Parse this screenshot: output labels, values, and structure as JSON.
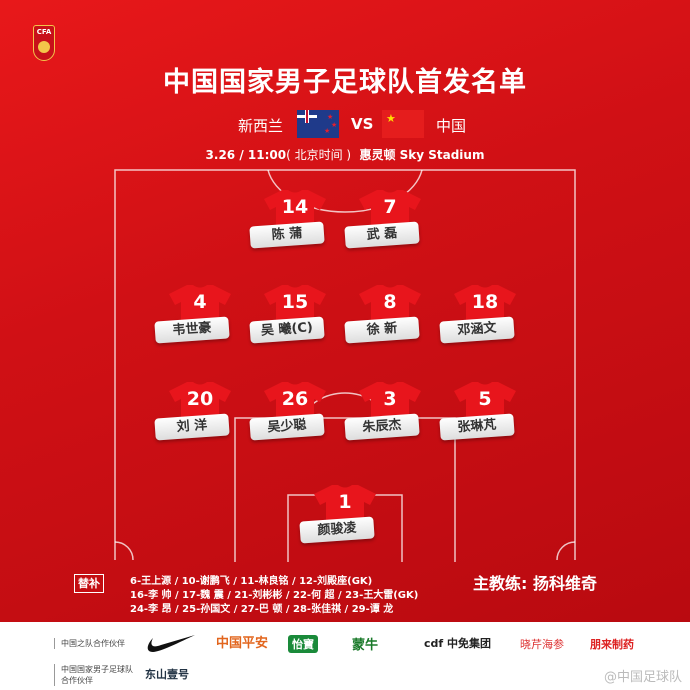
{
  "logo": {
    "text": "CFA"
  },
  "title": "中国国家男子足球队首发名单",
  "match": {
    "home": "新西兰",
    "vs": "VS",
    "away": "中国",
    "date_time": "3.26 / 11:00",
    "timezone": "( 北京时间 )",
    "venue": "惠灵顿 Sky Stadium"
  },
  "colors": {
    "primary": "#d01015",
    "jersey": "#e8151c",
    "gold": "#f3c54a"
  },
  "players": [
    {
      "number": "14",
      "name": "陈 蒲"
    },
    {
      "number": "7",
      "name": "武 磊"
    },
    {
      "number": "4",
      "name": "韦世豪"
    },
    {
      "number": "15",
      "name": "吴 曦(C)"
    },
    {
      "number": "8",
      "name": "徐 新"
    },
    {
      "number": "18",
      "name": "邓涵文"
    },
    {
      "number": "20",
      "name": "刘 洋"
    },
    {
      "number": "26",
      "name": "吴少聪"
    },
    {
      "number": "3",
      "name": "朱辰杰"
    },
    {
      "number": "5",
      "name": "张琳芃"
    },
    {
      "number": "1",
      "name": "颜骏凌"
    }
  ],
  "substitutes": {
    "label": "替补",
    "lines": [
      "6-王上源 / 10-谢鹏飞 / 11-林良铭 / 12-刘殿座(GK)",
      "16-李 帅 / 17-魏 震 / 21-刘彬彬 / 22-何 超 / 23-王大雷(GK)",
      "24-李 昂 / 25-孙国文 / 27-巴 顿 / 28-张佳祺 / 29-谭 龙"
    ]
  },
  "coach": "主教练: 扬科维奇",
  "partners": {
    "label1": "中国之队合作伙伴",
    "label2": "中国国家男子足球队合作伙伴",
    "sponsors": [
      "中国平安",
      "怡寶",
      "蒙牛",
      "cdf 中免集团",
      "晓芹海参",
      "朋来制药",
      "东山壹号"
    ]
  },
  "watermark": "@中国足球队"
}
